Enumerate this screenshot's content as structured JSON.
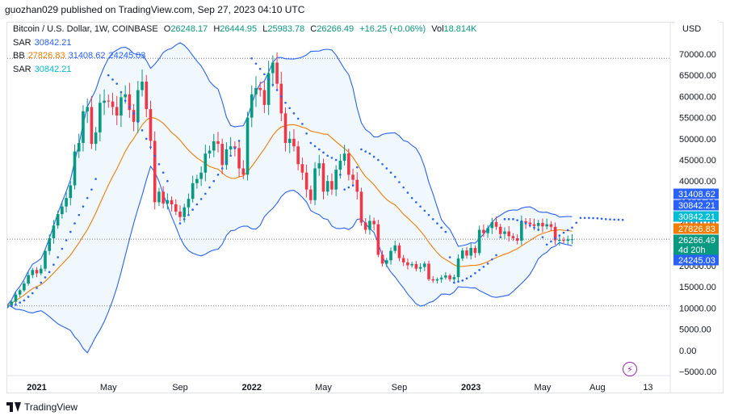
{
  "header": {
    "text": "guozhan029 published on TradingView.com, Sep 27, 2023 04:10 UTC"
  },
  "legend": {
    "symbol": "Bitcoin / U.S. Dollar, 1W, COINBASE",
    "o_label": "O",
    "o": "26248.17",
    "h_label": "H",
    "h": "26444.95",
    "l_label": "L",
    "l": "25983.78",
    "c_label": "C",
    "c": "26266.49",
    "change": "+16.25 (+0.06%)",
    "vol_label": "Vol",
    "vol": "18.814K",
    "sar1_label": "SAR",
    "sar1": "30842.21",
    "bb_label": "BB",
    "bb_mid": "27826.83",
    "bb_up": "31408.62",
    "bb_low": "24245.03",
    "sar2_label": "SAR",
    "sar2": "30842.21"
  },
  "currency_button": "USD",
  "footer": {
    "brand": "TradingView"
  },
  "colors": {
    "up": "#089981",
    "down": "#f23645",
    "sar": "#2962ff",
    "bb_basis": "#f57c00",
    "bb_band": "#2962ff",
    "bb_fill": "#e3f2fd",
    "sar_tag": "#00bcd4"
  },
  "chart_data": {
    "type": "candlestick",
    "timeframe": "1W",
    "y_axis": {
      "ticks": [
        70000,
        65000,
        60000,
        55000,
        50000,
        45000,
        40000,
        35000,
        30000,
        25000,
        20000,
        15000,
        10000,
        5000,
        0,
        -5000
      ],
      "tick_labels": [
        "70000.00",
        "65000.00",
        "60000.00",
        "55000.00",
        "50000.00",
        "45000.00",
        "40000.00",
        "35000.00",
        "30000.00",
        "25000.00",
        "20000.00",
        "15000.00",
        "10000.00",
        "5000.00",
        "0.00",
        "−5000.00"
      ],
      "range": [
        -6500,
        73000
      ]
    },
    "x_axis": {
      "labels": [
        {
          "text": "2021",
          "bold": true,
          "week": 7
        },
        {
          "text": "May",
          "bold": false,
          "week": 24
        },
        {
          "text": "Sep",
          "bold": false,
          "week": 41
        },
        {
          "text": "2022",
          "bold": true,
          "week": 58
        },
        {
          "text": "May",
          "bold": false,
          "week": 75
        },
        {
          "text": "Sep",
          "bold": false,
          "week": 93
        },
        {
          "text": "2023",
          "bold": true,
          "week": 110
        },
        {
          "text": "May",
          "bold": false,
          "week": 127
        },
        {
          "text": "Aug",
          "bold": false,
          "week": 140
        },
        {
          "text": "13",
          "bold": false,
          "week": 152
        }
      ]
    },
    "reference_lines": {
      "dotted_high": 69000,
      "dotted_current": 26266.49,
      "dotted_low": 10500
    },
    "price_tags": [
      {
        "text": "31408.62",
        "value": 31408.62,
        "color": "#2962ff"
      },
      {
        "text": "30842.21",
        "value": 30842.21,
        "color": "#2962ff"
      },
      {
        "text": "30842.21",
        "value": 30842.21,
        "color": "#00bcd4"
      },
      {
        "text": "27826.83",
        "value": 27826.83,
        "color": "#f57c00"
      },
      {
        "text": "26266.49",
        "value": 26266.49,
        "color": "#089981",
        "sub": "4d 20h"
      },
      {
        "text": "24245.03",
        "value": 24245.03,
        "color": "#2962ff"
      }
    ],
    "closes": [
      10700,
      11500,
      13200,
      14200,
      15800,
      17800,
      19000,
      18200,
      19300,
      23500,
      26500,
      29500,
      32200,
      34000,
      36000,
      39000,
      47000,
      49000,
      56500,
      57500,
      48800,
      51500,
      58500,
      59000,
      58800,
      57500,
      55500,
      59800,
      60500,
      56800,
      54000,
      61500,
      63500,
      57000,
      49500,
      35000,
      37500,
      34700,
      35500,
      34500,
      32800,
      31500,
      33800,
      35800,
      39500,
      40500,
      42000,
      46500,
      47200,
      49400,
      48800,
      43800,
      47500,
      48200,
      47800,
      43000,
      41500,
      55000,
      60500,
      62000,
      61500,
      58000,
      65500,
      68000,
      63000,
      56000,
      49000,
      50000,
      48200,
      44000,
      42000,
      38000,
      35500,
      43000,
      44200,
      37500,
      40000,
      38000,
      42700,
      44800,
      46500,
      41500,
      40300,
      37500,
      30200,
      28500,
      30600,
      29800,
      22600,
      20500,
      21300,
      23500,
      24800,
      21800,
      20800,
      20100,
      20400,
      19300,
      19700,
      20500,
      16800,
      16500,
      16800,
      17200,
      17700,
      16800,
      17300,
      21700,
      23600,
      22400,
      24200,
      23000,
      28500,
      27700,
      28900,
      30300,
      29200,
      27500,
      28100,
      27000,
      26500,
      25900,
      30500,
      30200,
      29800,
      29400,
      30100,
      29300,
      29800,
      29200,
      26000,
      26100,
      25900,
      26200,
      26266
    ],
    "sar_series": [
      [
        0,
        10200
      ],
      [
        2,
        10800
      ],
      [
        4,
        11800
      ],
      [
        6,
        13500
      ],
      [
        8,
        16000
      ],
      [
        10,
        18500
      ],
      [
        12,
        22000
      ],
      [
        14,
        26000
      ],
      [
        16,
        30000
      ],
      [
        18,
        34000
      ],
      [
        20,
        38000
      ],
      [
        21,
        40500
      ],
      [
        24,
        65000
      ],
      [
        26,
        63000
      ],
      [
        28,
        59000
      ],
      [
        30,
        56000
      ],
      [
        32,
        52000
      ],
      [
        34,
        48000
      ],
      [
        36,
        44000
      ],
      [
        38,
        40000
      ],
      [
        41,
        30000
      ],
      [
        43,
        32000
      ],
      [
        45,
        34500
      ],
      [
        47,
        37000
      ],
      [
        49,
        40000
      ],
      [
        51,
        43000
      ],
      [
        53,
        46000
      ],
      [
        55,
        49500
      ],
      [
        58,
        69000
      ],
      [
        60,
        66500
      ],
      [
        62,
        64000
      ],
      [
        64,
        61500
      ],
      [
        66,
        58500
      ],
      [
        68,
        56000
      ],
      [
        70,
        53500
      ],
      [
        72,
        49000
      ],
      [
        74,
        47500
      ],
      [
        76,
        46000
      ],
      [
        78,
        45000
      ],
      [
        80,
        38000
      ],
      [
        82,
        39000
      ],
      [
        84,
        47500
      ],
      [
        86,
        46500
      ],
      [
        88,
        45000
      ],
      [
        90,
        43000
      ],
      [
        92,
        41000
      ],
      [
        94,
        38500
      ],
      [
        96,
        36000
      ],
      [
        98,
        34000
      ],
      [
        100,
        32000
      ],
      [
        102,
        30000
      ],
      [
        104,
        28000
      ],
      [
        106,
        16000
      ],
      [
        108,
        16500
      ],
      [
        110,
        17500
      ],
      [
        112,
        19000
      ],
      [
        114,
        20500
      ],
      [
        116,
        22500
      ],
      [
        118,
        31000
      ],
      [
        120,
        31000
      ],
      [
        122,
        30500
      ],
      [
        124,
        29500
      ],
      [
        126,
        28500
      ],
      [
        128,
        25000
      ],
      [
        130,
        26500
      ],
      [
        132,
        27800
      ],
      [
        134,
        29000
      ],
      [
        136,
        31300
      ],
      [
        138,
        31300
      ],
      [
        140,
        31200
      ],
      [
        142,
        31000
      ],
      [
        144,
        30900
      ],
      [
        146,
        30842
      ]
    ]
  }
}
